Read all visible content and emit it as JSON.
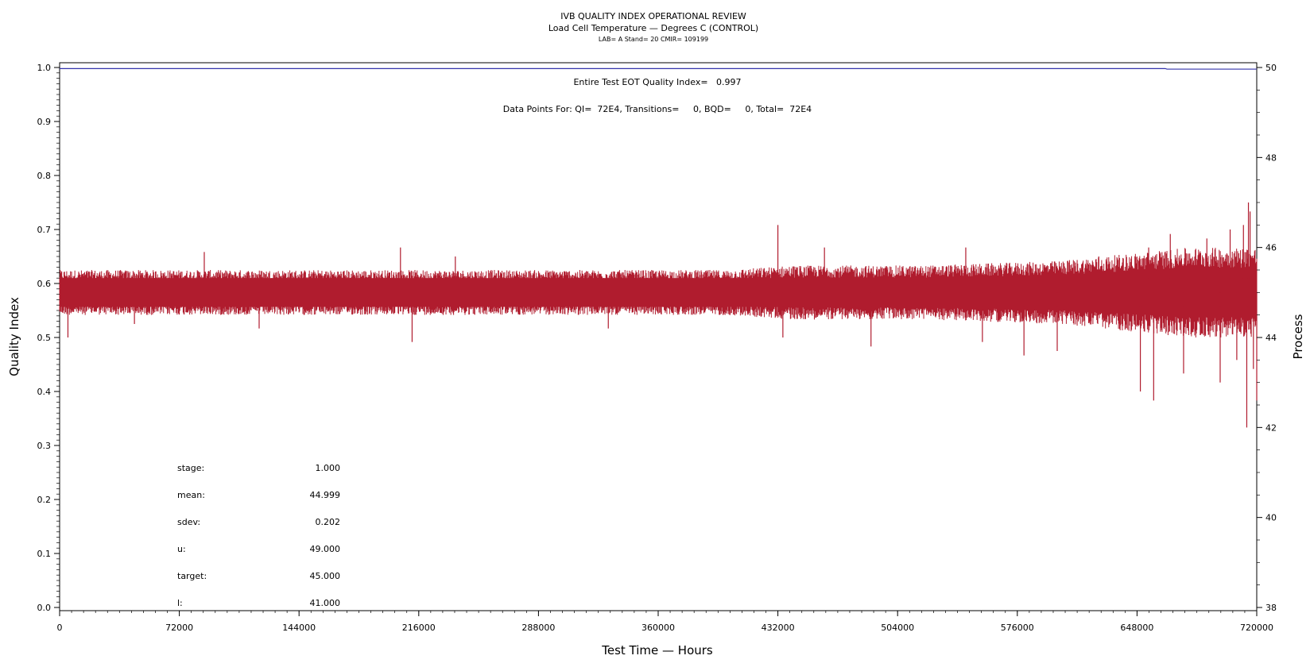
{
  "chart_data": {
    "type": "line",
    "title": "IVB QUALITY INDEX OPERATIONAL REVIEW",
    "subtitle": "Load Cell Temperature — Degrees C (CONTROL)",
    "subtitle2": "LAB= A Stand= 20 CMIR= 109199",
    "xlabel": "Test Time — Hours",
    "ylabel": "Quality Index",
    "y2label": "Process",
    "xlim": [
      0,
      720000
    ],
    "ylim": [
      0,
      1
    ],
    "y2lim": [
      38,
      50
    ],
    "x_ticks": [
      "0",
      "72000",
      "144000",
      "216000",
      "288000",
      "360000",
      "432000",
      "504000",
      "576000",
      "648000",
      "720000"
    ],
    "x_tick_values": [
      0,
      72000,
      144000,
      216000,
      288000,
      360000,
      432000,
      504000,
      576000,
      648000,
      720000
    ],
    "y_ticks": [
      "0.0",
      "0.1",
      "0.2",
      "0.3",
      "0.4",
      "0.5",
      "0.6",
      "0.7",
      "0.8",
      "0.9",
      "1.0"
    ],
    "y_tick_values": [
      0,
      0.1,
      0.2,
      0.3,
      0.4,
      0.5,
      0.6,
      0.7,
      0.8,
      0.9,
      1.0
    ],
    "y2_ticks": [
      "38",
      "40",
      "42",
      "44",
      "46",
      "48",
      "50"
    ],
    "y2_tick_values": [
      38,
      40,
      42,
      44,
      46,
      48,
      50
    ],
    "series": [
      {
        "color": "#3333aa",
        "axis": "left",
        "x": [
          0,
          665000,
          666000,
          720000
        ],
        "y": [
          0.998,
          0.998,
          0.997,
          0.997
        ]
      },
      {
        "color": "#b01c2e",
        "axis": "right",
        "center": 45.0,
        "envelope": {
          "x": [
            0,
            100000,
            200000,
            300000,
            400000,
            440000,
            480000,
            520000,
            560000,
            600000,
            640000,
            680000,
            720000
          ],
          "low": [
            44.5,
            44.5,
            44.5,
            44.5,
            44.5,
            44.4,
            44.4,
            44.4,
            44.35,
            44.3,
            44.15,
            44.0,
            44.0
          ],
          "high": [
            45.5,
            45.5,
            45.5,
            45.5,
            45.5,
            45.6,
            45.6,
            45.6,
            45.65,
            45.7,
            45.85,
            46.0,
            46.0
          ]
        },
        "spikes": [
          [
            5000,
            44.0
          ],
          [
            45000,
            44.3
          ],
          [
            87000,
            45.9
          ],
          [
            120000,
            44.2
          ],
          [
            205000,
            46.0
          ],
          [
            212000,
            43.9
          ],
          [
            238000,
            45.8
          ],
          [
            330000,
            44.2
          ],
          [
            432000,
            46.5
          ],
          [
            435000,
            44.0
          ],
          [
            460000,
            46.0
          ],
          [
            488000,
            43.8
          ],
          [
            545000,
            46.0
          ],
          [
            555000,
            43.9
          ],
          [
            580000,
            43.6
          ],
          [
            600000,
            43.7
          ],
          [
            625000,
            45.8
          ],
          [
            650000,
            42.8
          ],
          [
            655000,
            46.0
          ],
          [
            658000,
            42.6
          ],
          [
            668000,
            46.3
          ],
          [
            676000,
            43.2
          ],
          [
            690000,
            46.2
          ],
          [
            698000,
            43.0
          ],
          [
            704000,
            46.4
          ],
          [
            708000,
            43.5
          ],
          [
            712000,
            46.5
          ],
          [
            714000,
            42.0
          ],
          [
            715000,
            47.0
          ],
          [
            716000,
            46.8
          ],
          [
            718000,
            43.3
          ],
          [
            720000,
            42.6
          ]
        ]
      }
    ],
    "annotations": [
      "Entire Test EOT Quality Index=   0.997",
      "Data Points For: QI=  72E4, Transitions=     0, BQD=     0, Total=  72E4"
    ],
    "stats": [
      {
        "label": "stage:",
        "value": "1.000"
      },
      {
        "label": "mean:",
        "value": "44.999"
      },
      {
        "label": "sdev:",
        "value": "0.202"
      },
      {
        "label": "u:",
        "value": "49.000"
      },
      {
        "label": "target:",
        "value": "45.000"
      },
      {
        "label": "l:",
        "value": "41.000"
      }
    ],
    "grid": false,
    "legend": "none"
  }
}
